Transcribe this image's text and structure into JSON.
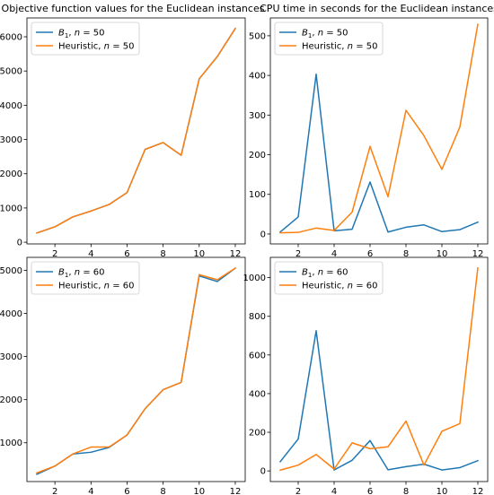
{
  "chart_data": [
    {
      "type": "line",
      "title": "Objective function values for the Euclidean instances",
      "x": [
        1,
        2,
        3,
        4,
        5,
        6,
        7,
        8,
        9,
        10,
        11,
        12
      ],
      "xticks": [
        2,
        4,
        6,
        8,
        10,
        12
      ],
      "xlim": [
        0.45,
        12.55
      ],
      "ylim": [
        -50,
        6550
      ],
      "yticks": [
        0,
        1000,
        2000,
        3000,
        4000,
        5000,
        6000
      ],
      "legend_location": "upper left",
      "series": [
        {
          "name": "B1, n = 50",
          "color": "#1f77b4",
          "values": [
            270,
            450,
            740,
            910,
            1100,
            1450,
            2710,
            2910,
            2540,
            4770,
            5420,
            6240
          ]
        },
        {
          "name": "Heuristic, n = 50",
          "color": "#ff7f0e",
          "values": [
            270,
            450,
            740,
            910,
            1100,
            1450,
            2710,
            2910,
            2540,
            4770,
            5420,
            6240
          ]
        }
      ]
    },
    {
      "type": "line",
      "title": "CPU time in seconds for the Euclidean instances",
      "x": [
        1,
        2,
        3,
        4,
        5,
        6,
        7,
        8,
        9,
        10,
        11,
        12
      ],
      "xticks": [
        2,
        4,
        6,
        8,
        10,
        12
      ],
      "xlim": [
        0.45,
        12.55
      ],
      "ylim": [
        -25,
        545
      ],
      "yticks": [
        0,
        100,
        200,
        300,
        400,
        500
      ],
      "legend_location": "upper left",
      "series": [
        {
          "name": "B1, n = 50",
          "color": "#1f77b4",
          "values": [
            5,
            43,
            403,
            8,
            12,
            131,
            5,
            17,
            23,
            6,
            11,
            30
          ]
        },
        {
          "name": "Heuristic, n = 50",
          "color": "#ff7f0e",
          "values": [
            3,
            4,
            15,
            9,
            55,
            221,
            94,
            312,
            248,
            163,
            270,
            529
          ]
        }
      ]
    },
    {
      "type": "line",
      "title": "",
      "x": [
        1,
        2,
        3,
        4,
        5,
        6,
        7,
        8,
        9,
        10,
        11,
        12
      ],
      "xticks": [
        2,
        4,
        6,
        8,
        10,
        12
      ],
      "xlim": [
        0.45,
        12.55
      ],
      "ylim": [
        100,
        5300
      ],
      "yticks": [
        1000,
        2000,
        3000,
        4000,
        5000
      ],
      "legend_location": "upper left",
      "series": [
        {
          "name": "B1, n = 60",
          "color": "#1f77b4",
          "values": [
            270,
            460,
            740,
            780,
            890,
            1180,
            1790,
            2230,
            2400,
            4870,
            4740,
            5050
          ]
        },
        {
          "name": "Heuristic, n = 60",
          "color": "#ff7f0e",
          "values": [
            300,
            460,
            740,
            900,
            900,
            1180,
            1790,
            2230,
            2400,
            4900,
            4780,
            5050
          ]
        }
      ]
    },
    {
      "type": "line",
      "title": "",
      "x": [
        1,
        2,
        3,
        4,
        5,
        6,
        7,
        8,
        9,
        10,
        11,
        12
      ],
      "xticks": [
        2,
        4,
        6,
        8,
        10,
        12
      ],
      "xlim": [
        0.45,
        12.55
      ],
      "ylim": [
        -55,
        1105
      ],
      "yticks": [
        0,
        200,
        400,
        600,
        800,
        1000
      ],
      "legend_location": "upper left",
      "series": [
        {
          "name": "B1, n = 60",
          "color": "#1f77b4",
          "values": [
            48,
            165,
            725,
            5,
            55,
            157,
            6,
            22,
            35,
            5,
            17,
            53
          ]
        },
        {
          "name": "Heuristic, n = 60",
          "color": "#ff7f0e",
          "values": [
            4,
            30,
            85,
            10,
            145,
            115,
            125,
            258,
            30,
            205,
            245,
            1050
          ]
        }
      ]
    }
  ],
  "legend_labels": {
    "panel_1": [
      {
        "symbol": "B",
        "subscript": "1",
        "rest": ", ",
        "var": "n",
        "eq": " = 50"
      },
      {
        "text": "Heuristic, ",
        "var": "n",
        "eq": " = 50"
      }
    ],
    "panel_2": [
      {
        "symbol": "B",
        "subscript": "1",
        "rest": ", ",
        "var": "n",
        "eq": " = 50"
      },
      {
        "text": "Heuristic, ",
        "var": "n",
        "eq": " = 50"
      }
    ],
    "panel_3": [
      {
        "symbol": "B",
        "subscript": "1",
        "rest": ", ",
        "var": "n",
        "eq": " = 60"
      },
      {
        "text": "Heuristic, ",
        "var": "n",
        "eq": " = 60"
      }
    ],
    "panel_4": [
      {
        "symbol": "B",
        "subscript": "1",
        "rest": ", ",
        "var": "n",
        "eq": " = 60"
      },
      {
        "text": "Heuristic, ",
        "var": "n",
        "eq": " = 60"
      }
    ]
  }
}
